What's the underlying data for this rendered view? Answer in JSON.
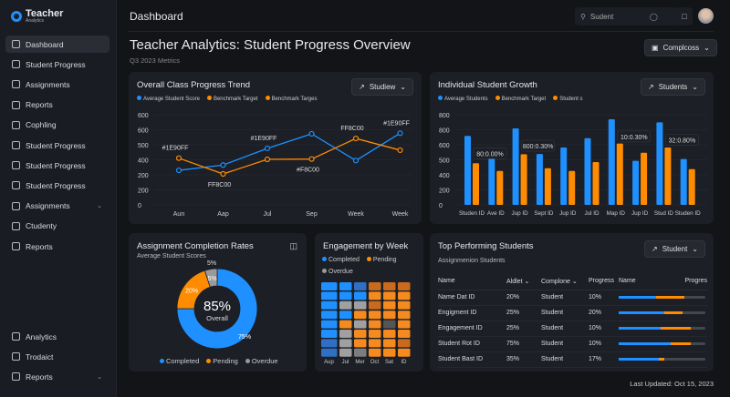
{
  "app": {
    "title": "Teacher",
    "subtitle": "Analytics"
  },
  "sidebar": {
    "items": [
      {
        "label": "Dashboard",
        "icon": "dashboard-icon",
        "active": true
      },
      {
        "label": "Student Progress",
        "icon": "progress-icon"
      },
      {
        "label": "Assignments",
        "icon": "assignments-icon"
      },
      {
        "label": "Reports",
        "icon": "reports-icon"
      },
      {
        "label": "Cophling",
        "icon": "clock-icon"
      },
      {
        "label": "Student Progress",
        "icon": "chart-icon"
      },
      {
        "label": "Student Progress",
        "icon": "target-icon"
      },
      {
        "label": "Student Progress",
        "icon": "document-icon"
      },
      {
        "label": "Assignments",
        "icon": "assignments-icon",
        "expandable": true
      },
      {
        "label": "Ctudenty",
        "icon": "play-icon"
      },
      {
        "label": "Reports",
        "icon": "reports-icon"
      }
    ],
    "bottom": [
      {
        "label": "Analytics",
        "icon": "analytics-icon"
      },
      {
        "label": "Trodaict",
        "icon": "product-icon"
      },
      {
        "label": "Reports",
        "icon": "reports-icon",
        "expandable": true
      }
    ]
  },
  "header": {
    "title": "Dashboard",
    "search_value": "Sudent"
  },
  "page": {
    "title": "Teacher Analytics: Student Progress Overview",
    "subtitle": "Q3 2023 Metrics",
    "action": "Complcoss"
  },
  "colors": {
    "blue": "#1e90ff",
    "orange": "#ff8c00",
    "gray": "#9a9a9a"
  },
  "chart_data": [
    {
      "type": "line",
      "title": "Overall Class Progress Trend",
      "dropdown": "Studiew",
      "legend": [
        "Average Student Score",
        "Benchmark Target",
        "Benchmark Targes"
      ],
      "categories": [
        "Aun",
        "Aap",
        "Jul",
        "Sep",
        "Week",
        "Week"
      ],
      "ytick_labels": [
        "0",
        "200",
        "200",
        "400",
        "500",
        "600",
        "600"
      ],
      "ylim": [
        0,
        600
      ],
      "series": [
        {
          "name": "Average Student Score",
          "color": "#1e90ff",
          "values": [
            230,
            265,
            376,
            473,
            295,
            477
          ]
        },
        {
          "name": "Benchmark Target",
          "color": "#ff8c00",
          "values": [
            311,
            206,
            303,
            305,
            442,
            364
          ]
        }
      ],
      "annotations": [
        {
          "text": "#1E90FF",
          "at": 0,
          "series": 1
        },
        {
          "text": "FF8C00",
          "at": 1,
          "series": 1,
          "below": true
        },
        {
          "text": "#1E90FF",
          "at": 2,
          "series": 0
        },
        {
          "text": "#F8C00",
          "at": 3,
          "series": 1,
          "below": true
        },
        {
          "text": "FF8C00",
          "at": 4,
          "series": 1
        },
        {
          "text": "#1E90FF",
          "at": 5,
          "series": 0
        }
      ]
    },
    {
      "type": "bar",
      "title": "Individual Student Growth",
      "dropdown": "Students",
      "legend": [
        "Average Students",
        "Benchmark Target",
        "Student s"
      ],
      "categories": [
        "Studen ID",
        "Ave ID",
        "Jup ID",
        "Sept ID",
        "Jup ID",
        "Jul ID",
        "Map ID",
        "Jup ID",
        "Stud ID",
        "Studen ID"
      ],
      "ytick_labels": [
        "0",
        "200",
        "400",
        "500",
        "600",
        "800",
        "800"
      ],
      "ylim": [
        0,
        600
      ],
      "series": [
        {
          "name": "Average Students",
          "color": "#1e90ff",
          "values": [
            459,
            307,
            509,
            339,
            382,
            444,
            570,
            293,
            549,
            305
          ]
        },
        {
          "name": "Benchmark Target",
          "color": "#ff8c00",
          "values": [
            277,
            226,
            337,
            244,
            226,
            285,
            408,
            347,
            382,
            238
          ]
        }
      ],
      "annotations": [
        {
          "text": "80:0.00%",
          "at": 0
        },
        {
          "text": "800:0.30%",
          "at": 2
        },
        {
          "text": "10:0.30%",
          "at": 6
        },
        {
          "text": "32:0.80%",
          "at": 8
        }
      ]
    },
    {
      "type": "pie",
      "title": "Assignment Completion Rates",
      "subtitle": "Average Student Scores",
      "center_value": "85%",
      "center_label": "Overall",
      "slices": [
        {
          "name": "Completed",
          "value": 75,
          "label": "75%",
          "color": "#1e90ff"
        },
        {
          "name": "Pending",
          "value": 20,
          "label": "20%",
          "color": "#ff8c00"
        },
        {
          "name": "Overdue",
          "value": 5,
          "label": "5%",
          "color": "#9a9a9a"
        }
      ],
      "outer_label": "5%"
    },
    {
      "type": "heatmap",
      "title": "Engagement by Week",
      "legend": [
        "Completed",
        "Pending",
        "Overdue"
      ],
      "columns": [
        "Aup",
        "Jul",
        "Mer",
        "Oct",
        "Sat",
        "ID"
      ],
      "cells": [
        "BBbooo",
        "BBBOOO",
        "BGGoOO",
        "BBOOOO",
        "BOGOdO",
        "BGOOOO",
        "bGOOOo",
        "bGgOOO"
      ],
      "key": {
        "B": "#1e90ff",
        "b": "#2f6fc4",
        "O": "#f58a1f",
        "o": "#c96a1e",
        "G": "#a0a0a0",
        "g": "#7d7d7d",
        "d": "#555"
      }
    }
  ],
  "table": {
    "title": "Top Performing Students",
    "subtitle": "Assignmenion Students",
    "dropdown": "Student",
    "headers": [
      "Name",
      "Aldlet",
      "Complone",
      "Progress",
      "Name",
      "Progres"
    ],
    "rows": [
      {
        "name": "Name Dat ID",
        "a": "20%",
        "c": "Student",
        "p": "10%",
        "blue": 0.43,
        "orange": 0.76
      },
      {
        "name": "Engigment ID",
        "a": "25%",
        "c": "Student",
        "p": "20%",
        "blue": 0.53,
        "orange": 0.74
      },
      {
        "name": "Engagement ID",
        "a": "25%",
        "c": "Student",
        "p": "10%",
        "blue": 0.48,
        "orange": 0.83
      },
      {
        "name": "Student Rot ID",
        "a": "75%",
        "c": "Student",
        "p": "10%",
        "blue": 0.6,
        "orange": 0.83
      },
      {
        "name": "Student Bast ID",
        "a": "35%",
        "c": "Student",
        "p": "17%",
        "blue": 0.46,
        "orange": 0.53
      }
    ]
  },
  "footer": {
    "last_updated": "Last Updated: Oct 15, 2023"
  }
}
